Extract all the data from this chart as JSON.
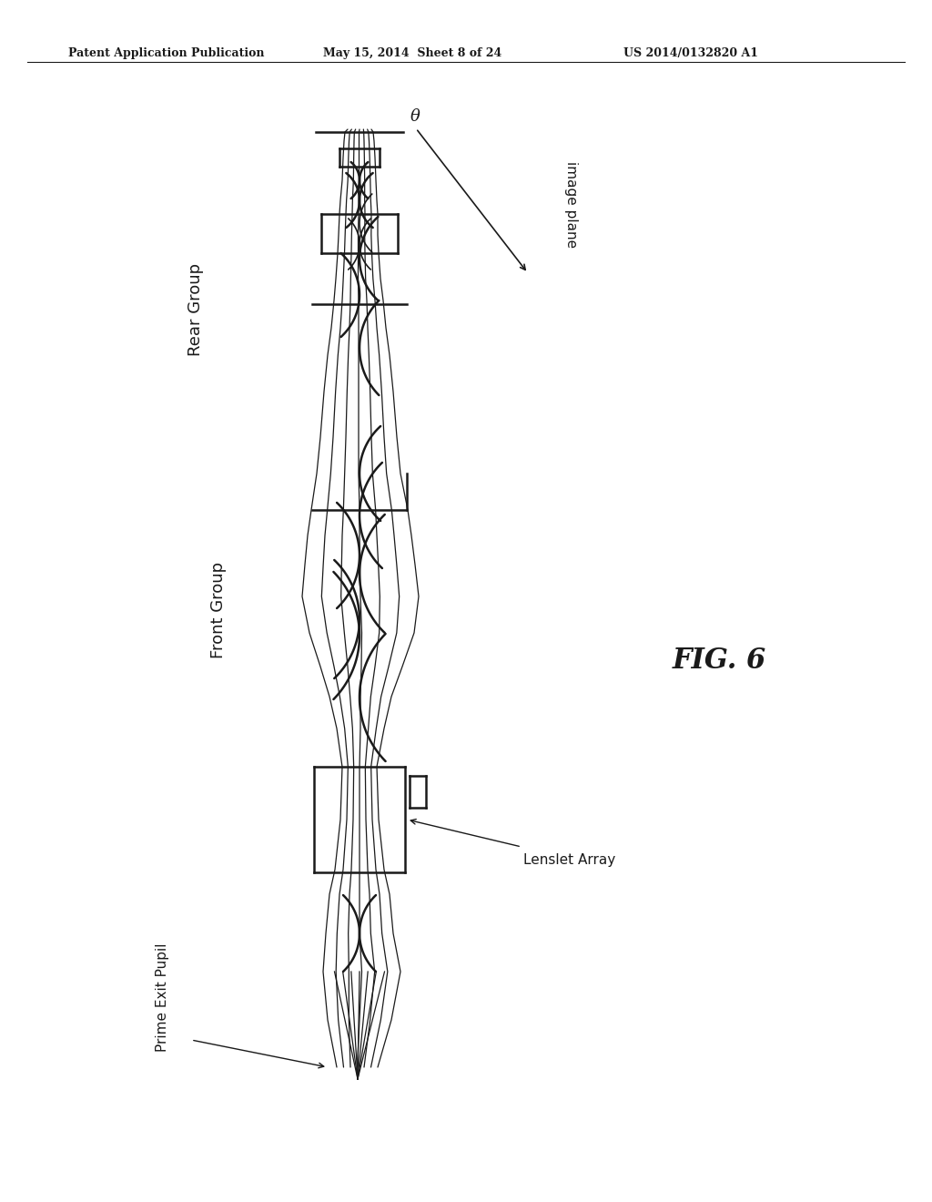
{
  "title_left": "Patent Application Publication",
  "title_center": "May 15, 2014  Sheet 8 of 24",
  "title_right": "US 2014/0132820 A1",
  "fig_label": "FIG. 6",
  "label_rear_group": "Rear Group",
  "label_front_group": "Front Group",
  "label_prime_exit_pupil": "Prime Exit Pupil",
  "label_lenslet_array": "Lenslet Array",
  "label_image_plane": "image plane",
  "label_theta": "θ",
  "bg_color": "#ffffff",
  "line_color": "#1a1a1a"
}
